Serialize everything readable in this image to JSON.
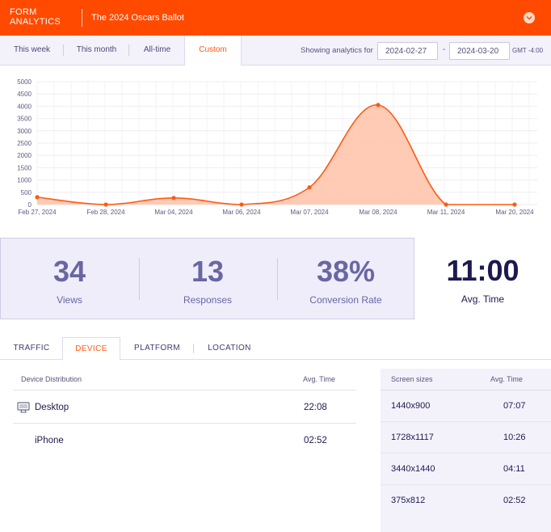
{
  "header": {
    "brand_line1": "FORM",
    "brand_line2": "ANALYTICS",
    "form_title": "The 2024 Oscars Ballot",
    "menu_icon": "chevron-down-icon",
    "accent": "#ff4a00"
  },
  "period_tabs": [
    {
      "label": "This week"
    },
    {
      "label": "This month"
    },
    {
      "label": "All-time"
    },
    {
      "label": "Custom",
      "active": true
    }
  ],
  "range": {
    "label": "Showing analytics for",
    "start": "2024-02-27",
    "end": "2024-03-20",
    "separator": "-",
    "timezone": "GMT -4:00"
  },
  "chart_data": {
    "type": "area",
    "categories": [
      "Feb 27, 2024",
      "Feb 28, 2024",
      "Mar 04, 2024",
      "Mar 06, 2024",
      "Mar 07, 2024",
      "Mar 08, 2024",
      "Mar 11, 2024",
      "Mar 20, 2024"
    ],
    "values": [
      300,
      0,
      270,
      0,
      700,
      4050,
      0,
      0
    ],
    "y_ticks": [
      0,
      500,
      1000,
      1500,
      2000,
      2500,
      3000,
      3500,
      4000,
      4500,
      5000
    ],
    "ylim": [
      0,
      5000
    ],
    "grid": true,
    "line_color": "#ff5a12",
    "fill_color": "#ffc2a8"
  },
  "stats": [
    {
      "value": "34",
      "label": "Views"
    },
    {
      "value": "13",
      "label": "Responses"
    },
    {
      "value": "38%",
      "label": "Conversion Rate"
    }
  ],
  "avg_time": {
    "value": "11:00",
    "label": "Avg. Time"
  },
  "detail_tabs": [
    {
      "label": "TRAFFIC"
    },
    {
      "label": "DEVICE",
      "active": true
    },
    {
      "label": "PLATFORM"
    },
    {
      "label": "LOCATION"
    }
  ],
  "device_table": {
    "col1": "Device Distribution",
    "col2": "Avg. Time",
    "rows": [
      {
        "device": "Desktop",
        "time": "22:08",
        "icon": "desktop-icon"
      },
      {
        "device": "iPhone",
        "time": "02:52"
      }
    ]
  },
  "screen_table": {
    "col1": "Screen sizes",
    "col2": "Avg. Time",
    "rows": [
      {
        "size": "1440x900",
        "time": "07:07"
      },
      {
        "size": "1728x1117",
        "time": "10:26"
      },
      {
        "size": "3440x1440",
        "time": "04:11"
      },
      {
        "size": "375x812",
        "time": "02:52"
      }
    ]
  }
}
